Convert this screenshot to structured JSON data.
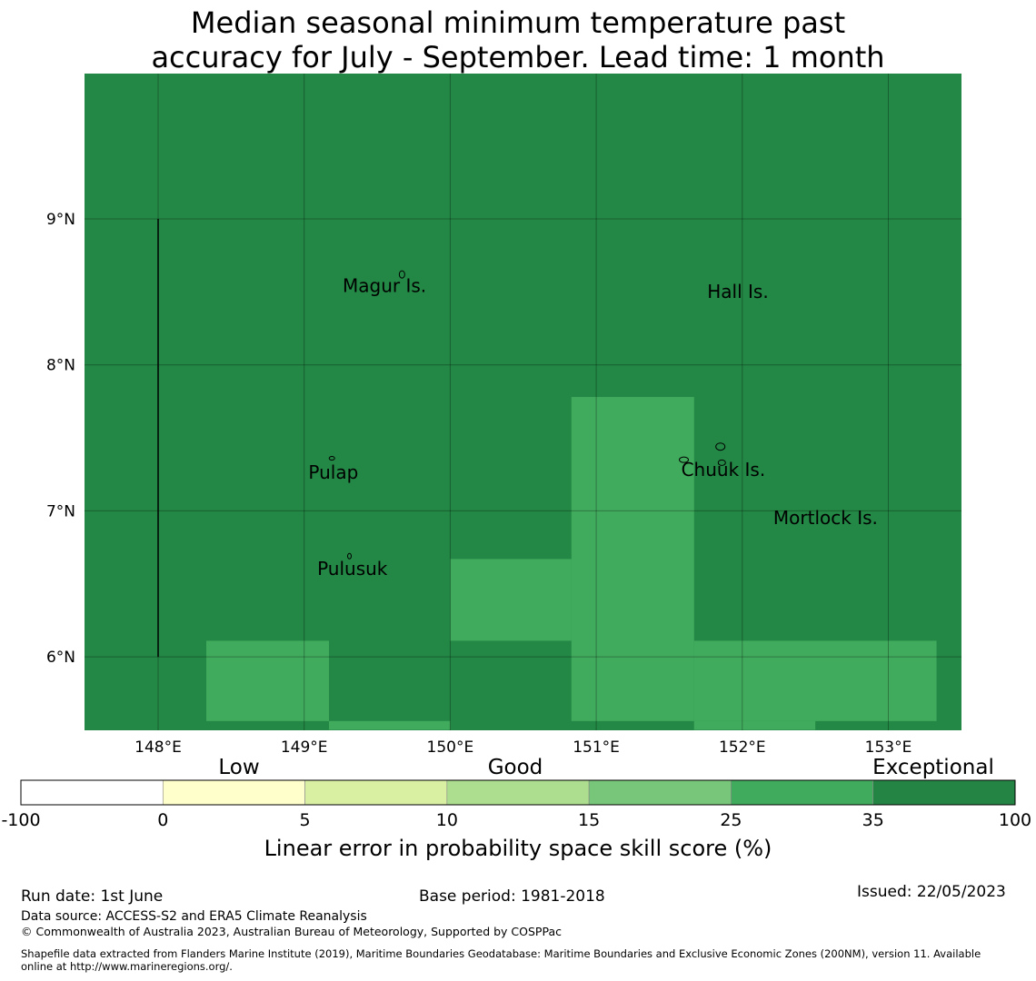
{
  "title_line1": "Median seasonal minimum temperature past",
  "title_line2": "accuracy for July - September. Lead time: 1 month",
  "map": {
    "background_color": "#238845",
    "lon_ticks": [
      "148°E",
      "149°E",
      "150°E",
      "151°E",
      "152°E",
      "153°E"
    ],
    "lat_ticks": [
      "9°N",
      "8°N",
      "7°N",
      "6°N"
    ],
    "lon_values": [
      148,
      149,
      150,
      151,
      152,
      153
    ],
    "lat_values": [
      9,
      8,
      7,
      6
    ],
    "lon_range": [
      147.5,
      153.5
    ],
    "lat_range": [
      5.5,
      10.0
    ],
    "cells": [
      {
        "lon": [
          148.33,
          149.17
        ],
        "lat": [
          5.56,
          6.11
        ],
        "category": "25-35",
        "color": "#41ab5d"
      },
      {
        "lon": [
          149.17,
          150.0
        ],
        "lat": [
          5.5,
          5.56
        ],
        "category": "25-35",
        "color": "#41ab5d"
      },
      {
        "lon": [
          150.0,
          150.83
        ],
        "lat": [
          6.11,
          6.67
        ],
        "category": "25-35",
        "color": "#41ab5d"
      },
      {
        "lon": [
          150.83,
          151.67
        ],
        "lat": [
          5.56,
          7.78
        ],
        "category": "25-35",
        "color": "#41ab5d"
      },
      {
        "lon": [
          151.67,
          153.33
        ],
        "lat": [
          5.56,
          6.11
        ],
        "category": "25-35",
        "color": "#41ab5d"
      },
      {
        "lon": [
          151.67,
          152.5
        ],
        "lat": [
          5.5,
          5.56
        ],
        "category": "25-35",
        "color": "#41ab5d"
      }
    ],
    "places": [
      {
        "name": "Magur Is.",
        "lon": 149.55,
        "lat": 8.5
      },
      {
        "name": "Hall Is.",
        "lon": 151.97,
        "lat": 8.46
      },
      {
        "name": "Pulap",
        "lon": 149.2,
        "lat": 7.22
      },
      {
        "name": "Chuuk Is.",
        "lon": 151.87,
        "lat": 7.24
      },
      {
        "name": "Mortlock Is.",
        "lon": 152.57,
        "lat": 6.91
      },
      {
        "name": "Pulusuk",
        "lon": 149.33,
        "lat": 6.56
      }
    ],
    "boundary_line": {
      "lon": 148.0,
      "lat": [
        6.0,
        9.0
      ]
    }
  },
  "legend": {
    "category_labels": [
      "Low",
      "Good",
      "Exceptional"
    ],
    "tick_labels": [
      "-100",
      "0",
      "5",
      "10",
      "15",
      "25",
      "35",
      "100"
    ],
    "colors": [
      "#ffffff",
      "#ffffcc",
      "#d9f0a3",
      "#addd8e",
      "#78c679",
      "#41ab5d",
      "#238443"
    ],
    "xlabel": "Linear error in probability space skill score (%)"
  },
  "footer": {
    "run_date": "Run date: 1st June",
    "base_period": "Base period: 1981-2018",
    "issued": "Issued: 22/05/2023",
    "data_source": "Data source: ACCESS-S2 and ERA5 Climate Reanalysis",
    "copyright": "© Commonwealth of Australia 2023, Australian Bureau of Meteorology, Supported by COSPPac",
    "shapefile_line1": "Shapefile data extracted from Flanders Marine Institute (2019), Maritime Boundaries Geodatabase: Maritime Boundaries and Exclusive Economic Zones (200NM), version 11. Available",
    "shapefile_line2": "online at http://www.marineregions.org/."
  }
}
